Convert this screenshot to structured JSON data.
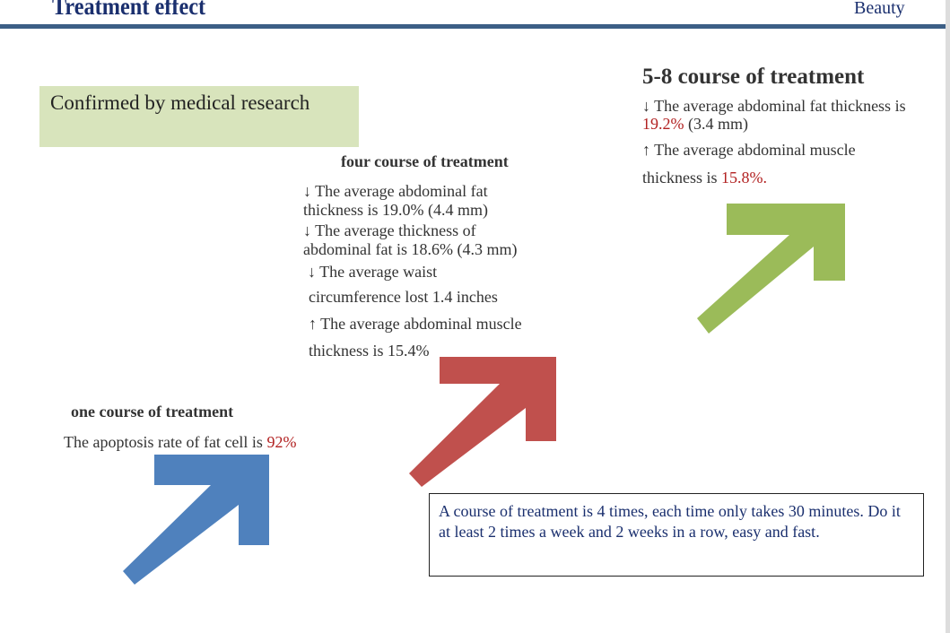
{
  "header": {
    "title": "Treatment effect",
    "logo_text": "Beauty"
  },
  "badge": "Confirmed by medical research",
  "one": {
    "heading": "one course of treatment",
    "text": "The apoptosis rate of fat cell is ",
    "value": "92%"
  },
  "four": {
    "heading": "four course of treatment",
    "lines": [
      "↓ The average abdominal fat thickness is 19.0% (4.4 mm)",
      "↓ The average thickness of abdominal fat is 18.6% (4.3 mm)",
      "↓ The average waist",
      "circumference lost 1.4 inches",
      "↑ The average abdominal muscle",
      "thickness is 15.4%"
    ]
  },
  "five_eight": {
    "heading": "5-8 course of treatment",
    "line1": "↓ The average abdominal fat thickness is ",
    "line1_value": "19.2%",
    "line1_rest": " (3.4 mm)",
    "line2": "↑ The average abdominal muscle",
    "line3": "thickness is ",
    "line3_value": "15.8%",
    "line3_end": "."
  },
  "note": "A course of treatment is 4 times, each time only takes 30 minutes. Do it at least 2 times a week and 2 weeks in a row, easy and fast.",
  "colors": {
    "blue_arrow": "#4f81bd",
    "red_arrow": "#c0504d",
    "green_arrow": "#9bbb59",
    "title": "#1a2f6e",
    "rule": "#3c5f86",
    "badge": "#d8e4bc"
  }
}
